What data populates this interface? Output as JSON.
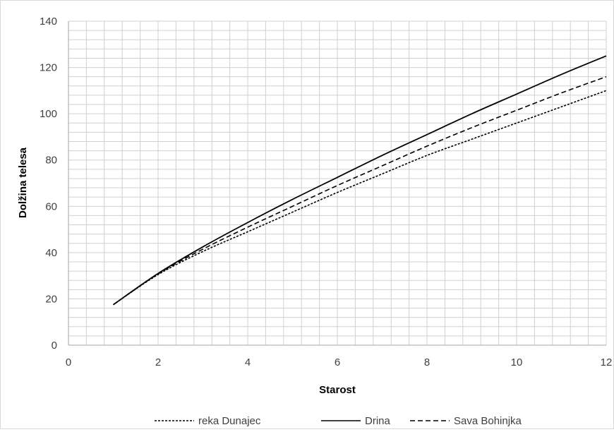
{
  "chart_data": {
    "type": "line",
    "title": "",
    "xlabel": "Starost",
    "ylabel": "Dolžina telesa",
    "xlim": [
      0,
      12
    ],
    "ylim": [
      0,
      140
    ],
    "x_ticks": [
      0,
      2,
      4,
      6,
      8,
      10,
      12
    ],
    "y_ticks": [
      0,
      20,
      40,
      60,
      80,
      100,
      120,
      140
    ],
    "grid": true,
    "legend_position": "bottom",
    "x": [
      1,
      2,
      3,
      4,
      5,
      6,
      7,
      8,
      9,
      10,
      11,
      12
    ],
    "series": [
      {
        "name": "reka Dunajec",
        "line_style": "dotted",
        "color": "#000000",
        "values": [
          17.5,
          30.5,
          40.5,
          49,
          57.5,
          66,
          74,
          82,
          89,
          96,
          103,
          110
        ]
      },
      {
        "name": "Drina",
        "line_style": "solid",
        "color": "#000000",
        "values": [
          17.5,
          31,
          42.5,
          53,
          63,
          72.5,
          82,
          91,
          100,
          108.5,
          117,
          125
        ]
      },
      {
        "name": "Sava Bohinjka",
        "line_style": "dashed",
        "color": "#000000",
        "values": [
          17.5,
          30.8,
          41.5,
          51,
          60,
          69,
          77.5,
          86,
          94,
          101.5,
          109,
          116
        ]
      }
    ]
  }
}
